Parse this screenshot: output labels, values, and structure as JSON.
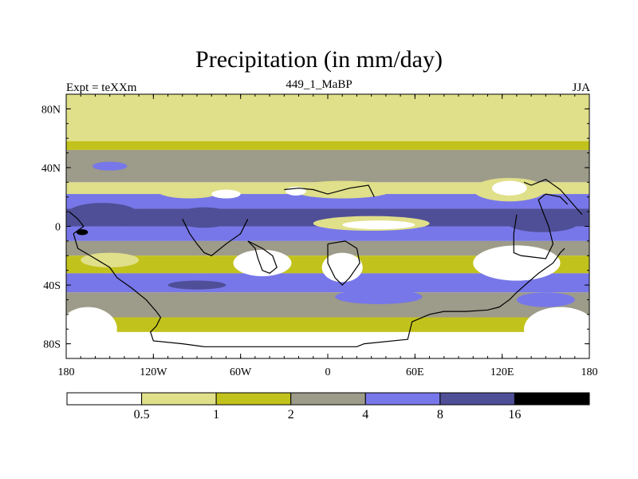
{
  "chart_data": {
    "type": "heatmap",
    "title": "Precipitation (in mm/day)",
    "left_string": "Expt = teXXm",
    "center_string": "449_1_MaBP",
    "right_string": "JJA",
    "projection": "cylindrical equidistant",
    "xlim": [
      -180,
      180
    ],
    "ylim": [
      -90,
      90
    ],
    "x_ticks": [
      {
        "value": -180,
        "label": "180"
      },
      {
        "value": -120,
        "label": "120W"
      },
      {
        "value": -60,
        "label": "60W"
      },
      {
        "value": 0,
        "label": "0"
      },
      {
        "value": 60,
        "label": "60E"
      },
      {
        "value": 120,
        "label": "120E"
      },
      {
        "value": 180,
        "label": "180"
      }
    ],
    "y_ticks": [
      {
        "value": 80,
        "label": "80N"
      },
      {
        "value": 40,
        "label": "40N"
      },
      {
        "value": 0,
        "label": "0"
      },
      {
        "value": -40,
        "label": "40S"
      },
      {
        "value": -80,
        "label": "80S"
      }
    ],
    "colorbar": {
      "levels": [
        0.5,
        1,
        2,
        4,
        8,
        16
      ],
      "level_labels": [
        "0.5",
        "1",
        "2",
        "4",
        "8",
        "16"
      ],
      "colors": [
        "#ffffff",
        "#e0df8a",
        "#c2c21d",
        "#9d9b89",
        "#7777e9",
        "#4f4f98",
        "#000000"
      ]
    },
    "zonal_bands": [
      {
        "lat_range": [
          68,
          90
        ],
        "class": 1
      },
      {
        "lat_range": [
          58,
          68
        ],
        "class": 1
      },
      {
        "lat_range": [
          52,
          58
        ],
        "class": 2
      },
      {
        "lat_range": [
          30,
          52
        ],
        "class": 3
      },
      {
        "lat_range": [
          22,
          30
        ],
        "class": 1
      },
      {
        "lat_range": [
          12,
          22
        ],
        "class": 4
      },
      {
        "lat_range": [
          0,
          12
        ],
        "class": 5
      },
      {
        "lat_range": [
          -10,
          0
        ],
        "class": 4
      },
      {
        "lat_range": [
          -20,
          -10
        ],
        "class": 3
      },
      {
        "lat_range": [
          -32,
          -20
        ],
        "class": 2
      },
      {
        "lat_range": [
          -45,
          -32
        ],
        "class": 4
      },
      {
        "lat_range": [
          -62,
          -45
        ],
        "class": 3
      },
      {
        "lat_range": [
          -72,
          -62
        ],
        "class": 2
      },
      {
        "lat_range": [
          -90,
          -72
        ],
        "class": 0
      }
    ],
    "features": [
      {
        "label": "north-cloud-band",
        "lon": -150,
        "lat": 41,
        "rlon": 12,
        "rlat": 3,
        "class": 4
      },
      {
        "label": "dry-area-north-america",
        "lon": -95,
        "lat": 24,
        "rlon": 22,
        "rlat": 5,
        "class": 1
      },
      {
        "label": "dry-core-north-america",
        "lon": -70,
        "lat": 22,
        "rlon": 10,
        "rlat": 3,
        "class": 0
      },
      {
        "label": "dry-area-atlantic",
        "lon": 10,
        "lat": 25,
        "rlon": 35,
        "rlat": 6,
        "class": 1
      },
      {
        "label": "dry-core-atlantic",
        "lon": -22,
        "lat": 24,
        "rlon": 7,
        "rlat": 3,
        "class": 0
      },
      {
        "label": "dry-area-east-asia",
        "lon": 125,
        "lat": 25,
        "rlon": 25,
        "rlat": 8,
        "class": 1
      },
      {
        "label": "dry-core-east-asia",
        "lon": 125,
        "lat": 26,
        "rlon": 12,
        "rlat": 5,
        "class": 0
      },
      {
        "label": "wet-pacific-west",
        "lon": -155,
        "lat": 8,
        "rlon": 25,
        "rlat": 8,
        "class": 5
      },
      {
        "label": "wet-pacific-east",
        "lon": -85,
        "lat": 6,
        "rlon": 20,
        "rlat": 7,
        "class": 5
      },
      {
        "label": "wet-indian-ocean",
        "lon": 148,
        "lat": 2,
        "rlon": 24,
        "rlat": 6,
        "class": 5
      },
      {
        "label": "extreme-west-pacific",
        "lon": -169,
        "lat": -4,
        "rlon": 4,
        "rlat": 2,
        "class": 6
      },
      {
        "label": "dry-band-equator",
        "lon": 30,
        "lat": 2,
        "rlon": 40,
        "rlat": 5,
        "class": 1
      },
      {
        "label": "dry-core-equator",
        "lon": 35,
        "lat": 1,
        "rlon": 25,
        "rlat": 3,
        "class": 0
      },
      {
        "label": "dry-south-america",
        "lon": -45,
        "lat": -25,
        "rlon": 20,
        "rlat": 9,
        "class": 0
      },
      {
        "label": "dry-south-america-east",
        "lon": 10,
        "lat": -28,
        "rlon": 14,
        "rlat": 10,
        "class": 0
      },
      {
        "label": "dry-south-australia",
        "lon": 130,
        "lat": -25,
        "rlon": 30,
        "rlat": 12,
        "class": 0
      },
      {
        "label": "dry-south-pacific",
        "lon": -150,
        "lat": -23,
        "rlon": 20,
        "rlat": 5,
        "class": 1
      },
      {
        "label": "storm-track-south-pacific",
        "lon": -90,
        "lat": -40,
        "rlon": 20,
        "rlat": 3,
        "class": 5
      },
      {
        "label": "storm-track-south-atlantic",
        "lon": 35,
        "lat": -48,
        "rlon": 30,
        "rlat": 5,
        "class": 4
      },
      {
        "label": "storm-track-southeast",
        "lon": 150,
        "lat": -50,
        "rlon": 20,
        "rlat": 5,
        "class": 4
      },
      {
        "label": "dry-southwest-corner",
        "lon": -165,
        "lat": -70,
        "rlon": 20,
        "rlat": 15,
        "class": 0
      },
      {
        "label": "dry-southeast-corner",
        "lon": 160,
        "lat": -70,
        "rlon": 25,
        "rlat": 15,
        "class": 0
      }
    ]
  }
}
